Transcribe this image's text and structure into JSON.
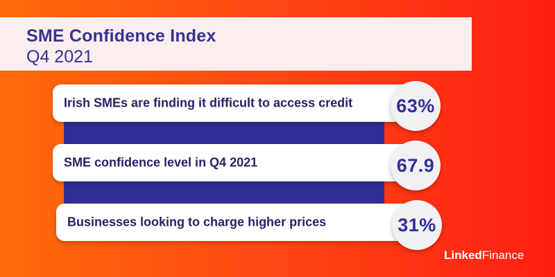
{
  "header": {
    "title": "SME Confidence Index",
    "subtitle": "Q4 2021"
  },
  "stats": [
    {
      "label": "Irish SMEs are finding it difficult to access credit",
      "value": "63%"
    },
    {
      "label": "SME confidence level in Q4 2021",
      "value": "67.9"
    },
    {
      "label": "Businesses looking to charge higher prices",
      "value": "31%"
    }
  ],
  "logo": {
    "bold": "Linked",
    "regular": "Finance"
  },
  "colors": {
    "navy": "#312f96",
    "title_bg": "#fbeeef",
    "background_start": "#ff6a0a",
    "background_end": "#ff1f14"
  }
}
